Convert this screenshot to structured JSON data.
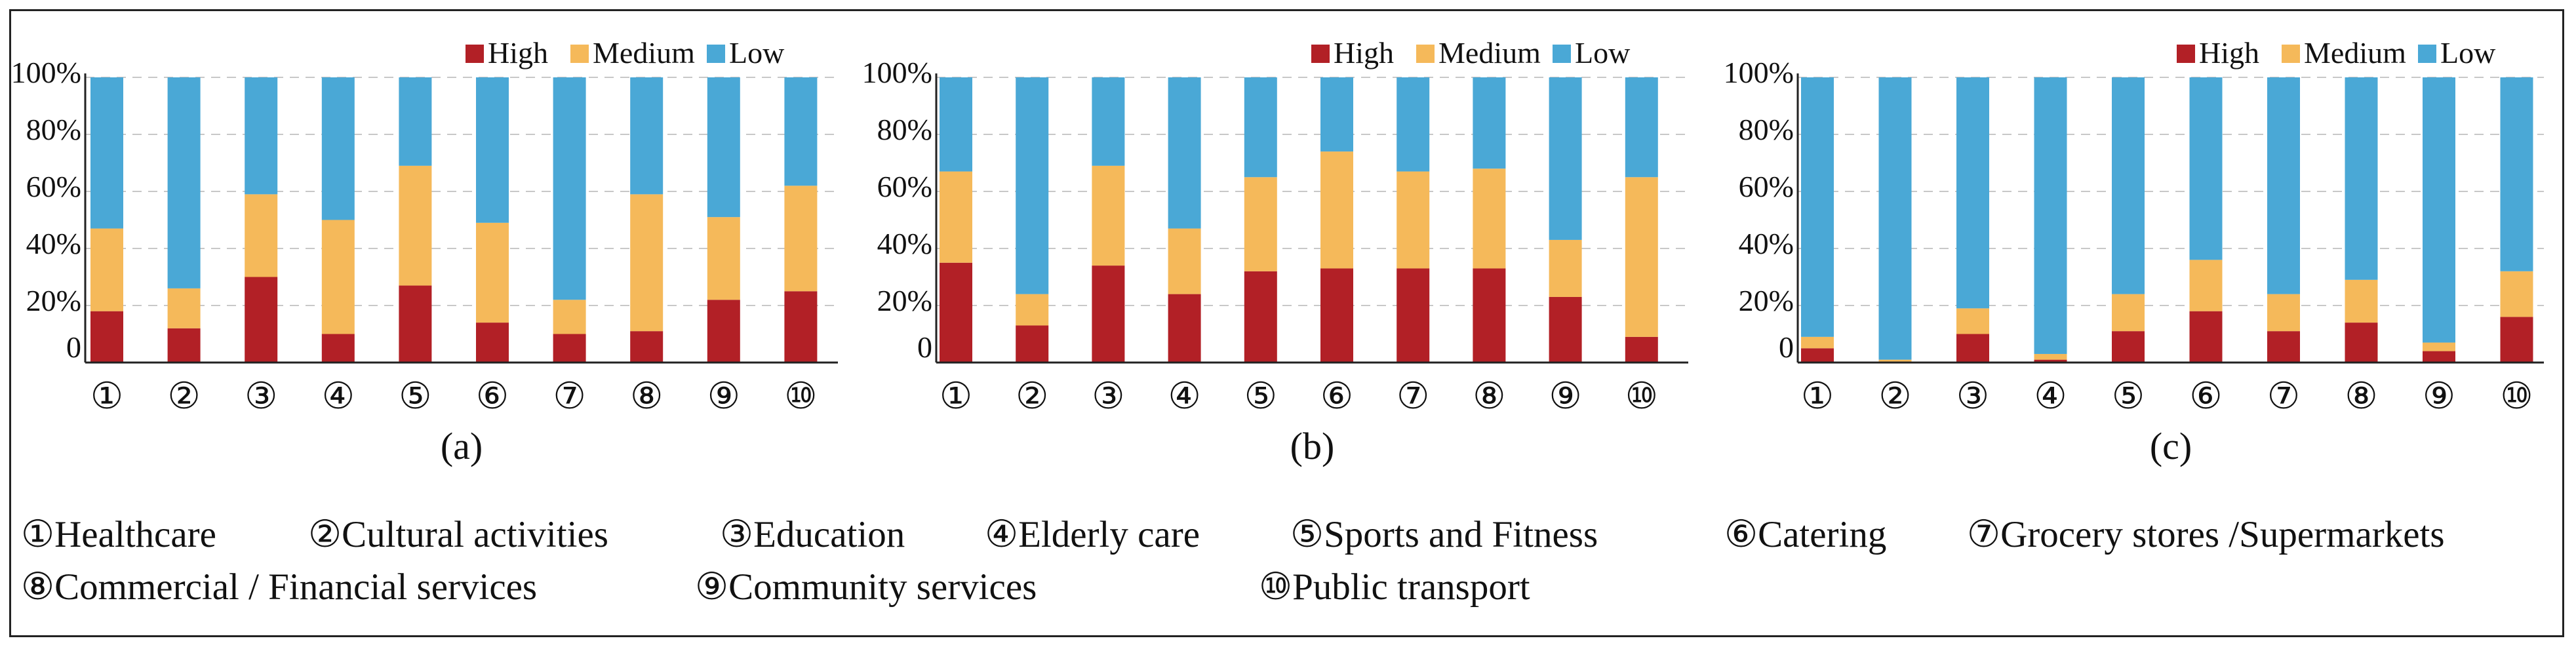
{
  "colors": {
    "High": "#B22026",
    "Medium": "#F5B95A",
    "Low": "#4AA8D6",
    "grid": "#c8c8c8",
    "axis": "#222222"
  },
  "legend": [
    {
      "name": "High",
      "color": "#B22026"
    },
    {
      "name": "Medium",
      "color": "#F5B95A"
    },
    {
      "name": "Low",
      "color": "#4AA8D6"
    }
  ],
  "yticks": [
    "0",
    "20%",
    "40%",
    "60%",
    "80%",
    "100%"
  ],
  "categories_legend": [
    "①Healthcare",
    "②Cultural activities",
    "③Education",
    "④Elderly care",
    "⑤Sports and Fitness",
    "⑥Catering",
    "⑦Grocery stores /Supermarkets",
    "⑧Commercial / Financial services",
    "⑨Community services",
    "⑩Public transport"
  ],
  "chart_data": [
    {
      "type": "bar",
      "stacked": true,
      "panel_label": "(a)",
      "categories": [
        "①",
        "②",
        "③",
        "④",
        "⑤",
        "⑥",
        "⑦",
        "⑧",
        "⑨",
        "⑩"
      ],
      "ylim": [
        0,
        100
      ],
      "series": [
        {
          "name": "High",
          "values": [
            18,
            12,
            30,
            10,
            27,
            14,
            10,
            11,
            22,
            25
          ]
        },
        {
          "name": "Medium",
          "values": [
            29,
            14,
            29,
            40,
            42,
            35,
            12,
            48,
            29,
            37
          ]
        },
        {
          "name": "Low",
          "values": [
            53,
            74,
            41,
            50,
            31,
            51,
            78,
            41,
            49,
            38
          ]
        }
      ]
    },
    {
      "type": "bar",
      "stacked": true,
      "panel_label": "(b)",
      "categories": [
        "①",
        "②",
        "③",
        "④",
        "⑤",
        "⑥",
        "⑦",
        "⑧",
        "⑨",
        "⑩"
      ],
      "ylim": [
        0,
        100
      ],
      "series": [
        {
          "name": "High",
          "values": [
            35,
            13,
            34,
            24,
            32,
            33,
            33,
            33,
            23,
            9
          ]
        },
        {
          "name": "Medium",
          "values": [
            32,
            11,
            35,
            23,
            33,
            41,
            34,
            35,
            20,
            56
          ]
        },
        {
          "name": "Low",
          "values": [
            33,
            76,
            31,
            53,
            35,
            26,
            33,
            32,
            57,
            35
          ]
        }
      ]
    },
    {
      "type": "bar",
      "stacked": true,
      "panel_label": "(c)",
      "categories": [
        "①",
        "②",
        "③",
        "④",
        "⑤",
        "⑥",
        "⑦",
        "⑧",
        "⑨",
        "⑩"
      ],
      "ylim": [
        0,
        100
      ],
      "series": [
        {
          "name": "High",
          "values": [
            5,
            0,
            10,
            1,
            11,
            18,
            11,
            14,
            4,
            16
          ]
        },
        {
          "name": "Medium",
          "values": [
            4,
            1,
            9,
            2,
            13,
            18,
            13,
            15,
            3,
            16
          ]
        },
        {
          "name": "Low",
          "values": [
            91,
            99,
            81,
            97,
            76,
            64,
            76,
            71,
            93,
            68
          ]
        }
      ]
    }
  ]
}
